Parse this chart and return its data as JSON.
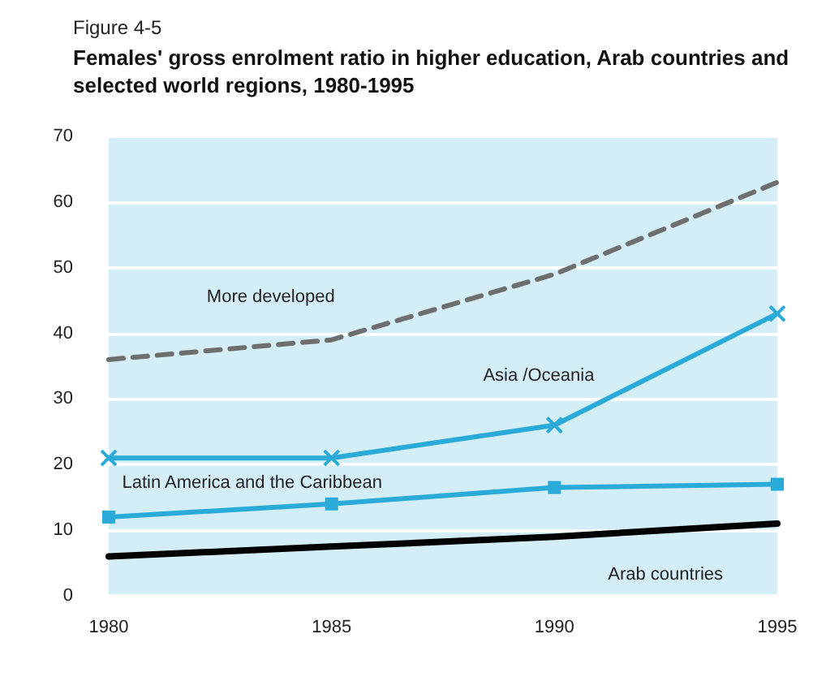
{
  "chart_data": {
    "type": "line",
    "subtitle": "Figure 4-5",
    "title": "Females' gross enrolment ratio in higher education, Arab countries and selected world regions, 1980-1995",
    "x": [
      1980,
      1985,
      1990,
      1995
    ],
    "xlim": [
      1980,
      1995
    ],
    "xticks": [
      1980,
      1985,
      1990,
      1995
    ],
    "ylim": [
      0,
      70
    ],
    "yticks": [
      0,
      10,
      20,
      30,
      40,
      50,
      60,
      70
    ],
    "grid": "y",
    "legend": false,
    "series": [
      {
        "name": "More developed",
        "color": "#6e6e6e",
        "line_style": "dashed",
        "marker": "none",
        "values": [
          36,
          39,
          49,
          63
        ]
      },
      {
        "name": "Asia /Oceania",
        "color": "#2aaad8",
        "line_style": "solid",
        "marker": "cross",
        "values": [
          21,
          21,
          26,
          43
        ]
      },
      {
        "name": "Latin America and the Caribbean",
        "color": "#2aaad8",
        "line_style": "solid",
        "marker": "square",
        "values": [
          12,
          14,
          16.5,
          17
        ]
      },
      {
        "name": "Arab countries",
        "color": "#000000",
        "line_style": "solid",
        "marker": "none",
        "values": [
          6,
          7.5,
          9,
          11
        ]
      }
    ]
  }
}
